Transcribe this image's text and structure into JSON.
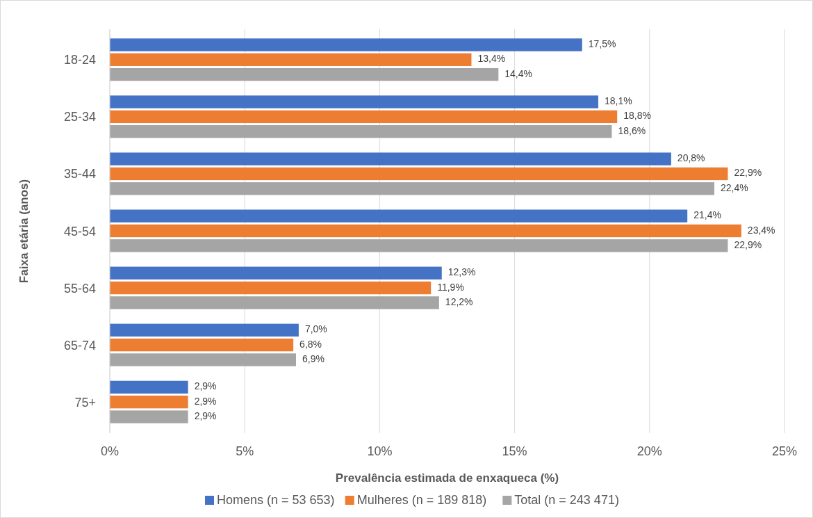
{
  "chart_data": {
    "type": "bar",
    "orientation": "horizontal",
    "xlabel": "Prevalência estimada de enxaqueca (%)",
    "ylabel": "Faixa etária (anos)",
    "categories": [
      "18-24",
      "25-34",
      "35-44",
      "45-54",
      "55-64",
      "65-74",
      "75+"
    ],
    "series": [
      {
        "name": "Homens (n = 53 653)",
        "color": "#4472c4",
        "values": [
          17.5,
          18.1,
          20.8,
          21.4,
          12.3,
          7.0,
          2.9
        ],
        "value_labels": [
          "17,5%",
          "18,1%",
          "20,8%",
          "21,4%",
          "12,3%",
          "7,0%",
          "2,9%"
        ]
      },
      {
        "name": "Mulheres (n = 189 818)",
        "color": "#ed7d31",
        "values": [
          13.4,
          18.8,
          22.9,
          23.4,
          11.9,
          6.8,
          2.9
        ],
        "value_labels": [
          "13,4%",
          "18,8%",
          "22,9%",
          "23,4%",
          "11,9%",
          "6,8%",
          "2,9%"
        ]
      },
      {
        "name": "Total (n = 243 471)",
        "color": "#a5a5a5",
        "values": [
          14.4,
          18.6,
          22.4,
          22.9,
          12.2,
          6.9,
          2.9
        ],
        "value_labels": [
          "14,4%",
          "18,6%",
          "22,4%",
          "22,9%",
          "12,2%",
          "6,9%",
          "2,9%"
        ]
      }
    ],
    "xlim": [
      0,
      25
    ],
    "xticks": [
      {
        "value": 0,
        "label": "0%"
      },
      {
        "value": 5,
        "label": "5%"
      },
      {
        "value": 10,
        "label": "10%"
      },
      {
        "value": 15,
        "label": "15%"
      },
      {
        "value": 20,
        "label": "20%"
      },
      {
        "value": 25,
        "label": "25%"
      }
    ],
    "grid": "x",
    "legend": "bottom"
  }
}
